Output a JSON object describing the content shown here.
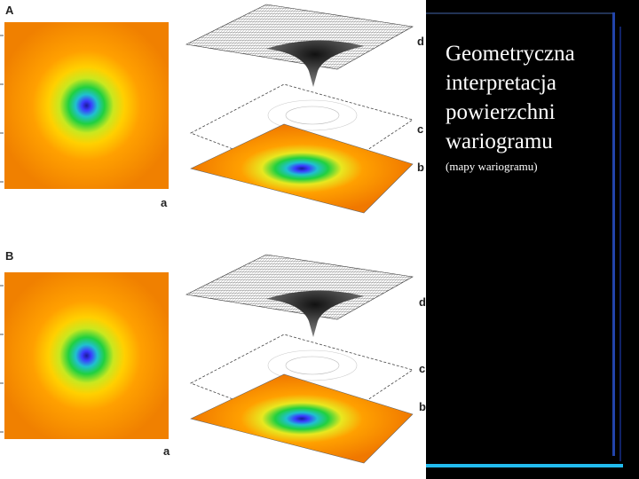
{
  "slide": {
    "title": "Geometryczna interpretacja powierzchni wariogramu",
    "subtitle": "(mapy wariogramu)"
  },
  "figures": [
    {
      "label": "A",
      "map_label": "a",
      "plane_b": "b",
      "plane_c": "c",
      "plane_d": "d"
    },
    {
      "label": "B",
      "map_label": "a",
      "plane_b": "b",
      "plane_c": "c",
      "plane_d": "d"
    }
  ]
}
